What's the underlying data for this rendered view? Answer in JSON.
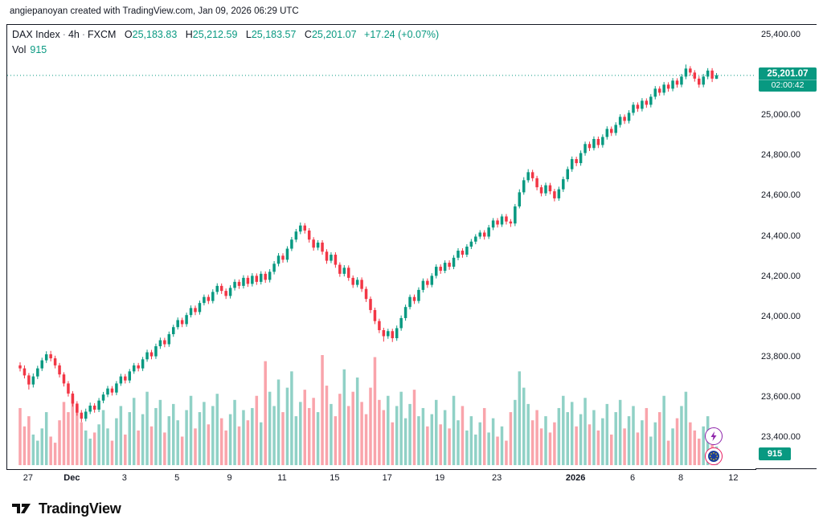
{
  "attribution": "angiepanoyan created with TradingView.com, Jan 09, 2026 06:29 UTC",
  "legend": {
    "symbol": "DAX Index",
    "sep": "·",
    "interval": "4h",
    "exchange": "FXCM",
    "o_label": "O",
    "o": "25,183.83",
    "h_label": "H",
    "h": "25,212.59",
    "l_label": "L",
    "l": "25,183.57",
    "c_label": "C",
    "c": "25,201.07",
    "change": "+17.24 (+0.07%)",
    "vol_label": "Vol",
    "vol_value": "915"
  },
  "price_label": {
    "price": "25,201.07",
    "countdown": "02:00:42"
  },
  "volume_axis_label": "915",
  "footer": {
    "logo_text": "TradingView"
  },
  "colors": {
    "up": "#089981",
    "down": "#f23645",
    "vol_up": "rgba(8,153,129,0.45)",
    "vol_down": "rgba(242,54,69,0.45)",
    "accent": "#089981"
  },
  "chart_data": {
    "type": "candlestick+volume",
    "title": "DAX Index · 4h · FXCM",
    "symbol": "DAX Index",
    "interval": "4h",
    "exchange": "FXCM",
    "last": {
      "open": 25183.83,
      "high": 25212.59,
      "low": 25183.57,
      "close": 25201.07,
      "change": 17.24,
      "change_pct": 0.07,
      "volume": 915
    },
    "ylim": [
      23400,
      25400
    ],
    "grid": false,
    "legend_position": "top-left",
    "y_ticks": [
      25400,
      25000,
      24800,
      24600,
      24400,
      24200,
      24000,
      23800,
      23600,
      23400
    ],
    "x_labels": [
      {
        "text": "27",
        "i": 2
      },
      {
        "text": "Dec",
        "i": 12,
        "major": true
      },
      {
        "text": "3",
        "i": 24
      },
      {
        "text": "5",
        "i": 36
      },
      {
        "text": "9",
        "i": 48
      },
      {
        "text": "11",
        "i": 60
      },
      {
        "text": "15",
        "i": 72
      },
      {
        "text": "17",
        "i": 84
      },
      {
        "text": "19",
        "i": 96
      },
      {
        "text": "23",
        "i": 109
      },
      {
        "text": "2026",
        "i": 127,
        "major": true
      },
      {
        "text": "6",
        "i": 140
      },
      {
        "text": "8",
        "i": 151
      },
      {
        "text": "12",
        "i": 163
      }
    ],
    "candles": [
      [
        23760,
        23775,
        23730,
        23745
      ],
      [
        23745,
        23760,
        23695,
        23710
      ],
      [
        23710,
        23722,
        23640,
        23665
      ],
      [
        23665,
        23720,
        23650,
        23705
      ],
      [
        23705,
        23758,
        23692,
        23745
      ],
      [
        23745,
        23798,
        23732,
        23785
      ],
      [
        23785,
        23830,
        23772,
        23815
      ],
      [
        23815,
        23832,
        23780,
        23795
      ],
      [
        23795,
        23808,
        23745,
        23760
      ],
      [
        23760,
        23772,
        23700,
        23715
      ],
      [
        23715,
        23726,
        23655,
        23670
      ],
      [
        23670,
        23682,
        23605,
        23620
      ],
      [
        23620,
        23632,
        23555,
        23570
      ],
      [
        23570,
        23582,
        23510,
        23525
      ],
      [
        23525,
        23538,
        23478,
        23495
      ],
      [
        23495,
        23545,
        23482,
        23530
      ],
      [
        23530,
        23575,
        23518,
        23560
      ],
      [
        23560,
        23572,
        23525,
        23540
      ],
      [
        23540,
        23598,
        23528,
        23585
      ],
      [
        23585,
        23628,
        23572,
        23615
      ],
      [
        23615,
        23658,
        23602,
        23645
      ],
      [
        23645,
        23657,
        23610,
        23625
      ],
      [
        23625,
        23682,
        23612,
        23670
      ],
      [
        23670,
        23718,
        23658,
        23705
      ],
      [
        23705,
        23717,
        23670,
        23685
      ],
      [
        23685,
        23742,
        23672,
        23730
      ],
      [
        23730,
        23772,
        23718,
        23760
      ],
      [
        23760,
        23772,
        23730,
        23745
      ],
      [
        23745,
        23802,
        23732,
        23790
      ],
      [
        23790,
        23838,
        23778,
        23825
      ],
      [
        23825,
        23837,
        23790,
        23805
      ],
      [
        23805,
        23868,
        23792,
        23855
      ],
      [
        23855,
        23898,
        23842,
        23885
      ],
      [
        23885,
        23897,
        23850,
        23865
      ],
      [
        23865,
        23928,
        23852,
        23915
      ],
      [
        23915,
        23962,
        23902,
        23950
      ],
      [
        23950,
        23998,
        23938,
        23985
      ],
      [
        23985,
        23997,
        23950,
        23965
      ],
      [
        23965,
        24022,
        23952,
        24010
      ],
      [
        24010,
        24058,
        23998,
        24045
      ],
      [
        24045,
        24057,
        24010,
        24025
      ],
      [
        24025,
        24082,
        24012,
        24070
      ],
      [
        24070,
        24112,
        24058,
        24100
      ],
      [
        24100,
        24112,
        24065,
        24080
      ],
      [
        24080,
        24138,
        24068,
        24125
      ],
      [
        24125,
        24168,
        24112,
        24155
      ],
      [
        24155,
        24167,
        24115,
        24130
      ],
      [
        24130,
        24142,
        24090,
        24105
      ],
      [
        24105,
        24158,
        24092,
        24145
      ],
      [
        24145,
        24188,
        24132,
        24175
      ],
      [
        24175,
        24187,
        24140,
        24155
      ],
      [
        24155,
        24208,
        24142,
        24195
      ],
      [
        24195,
        24207,
        24150,
        24165
      ],
      [
        24165,
        24218,
        24152,
        24205
      ],
      [
        24205,
        24217,
        24160,
        24175
      ],
      [
        24175,
        24228,
        24162,
        24215
      ],
      [
        24215,
        24227,
        24170,
        24185
      ],
      [
        24185,
        24238,
        24172,
        24225
      ],
      [
        24225,
        24278,
        24212,
        24265
      ],
      [
        24265,
        24318,
        24252,
        24305
      ],
      [
        24305,
        24317,
        24270,
        24285
      ],
      [
        24285,
        24352,
        24272,
        24340
      ],
      [
        24340,
        24398,
        24328,
        24385
      ],
      [
        24385,
        24438,
        24372,
        24425
      ],
      [
        24425,
        24470,
        24412,
        24455
      ],
      [
        24455,
        24467,
        24415,
        24430
      ],
      [
        24430,
        24442,
        24370,
        24385
      ],
      [
        24385,
        24397,
        24330,
        24345
      ],
      [
        24345,
        24382,
        24332,
        24370
      ],
      [
        24370,
        24382,
        24310,
        24325
      ],
      [
        24325,
        24337,
        24265,
        24280
      ],
      [
        24280,
        24322,
        24268,
        24310
      ],
      [
        24310,
        24322,
        24245,
        24260
      ],
      [
        24260,
        24272,
        24200,
        24215
      ],
      [
        24215,
        24258,
        24202,
        24245
      ],
      [
        24245,
        24257,
        24180,
        24195
      ],
      [
        24195,
        24207,
        24145,
        24160
      ],
      [
        24160,
        24198,
        24148,
        24185
      ],
      [
        24185,
        24197,
        24125,
        24140
      ],
      [
        24140,
        24152,
        24075,
        24090
      ],
      [
        24090,
        24102,
        24020,
        24035
      ],
      [
        24035,
        24047,
        23965,
        23980
      ],
      [
        23980,
        23992,
        23920,
        23935
      ],
      [
        23935,
        23947,
        23878,
        23905
      ],
      [
        23905,
        23942,
        23892,
        23930
      ],
      [
        23930,
        23942,
        23876,
        23895
      ],
      [
        23895,
        23958,
        23882,
        23945
      ],
      [
        23945,
        24008,
        23932,
        23995
      ],
      [
        23995,
        24062,
        23982,
        24050
      ],
      [
        24050,
        24112,
        24038,
        24100
      ],
      [
        24100,
        24112,
        24065,
        24080
      ],
      [
        24080,
        24148,
        24068,
        24135
      ],
      [
        24135,
        24192,
        24122,
        24180
      ],
      [
        24180,
        24192,
        24145,
        24160
      ],
      [
        24160,
        24218,
        24148,
        24205
      ],
      [
        24205,
        24262,
        24192,
        24250
      ],
      [
        24250,
        24262,
        24215,
        24230
      ],
      [
        24230,
        24282,
        24218,
        24270
      ],
      [
        24270,
        24282,
        24235,
        24250
      ],
      [
        24250,
        24308,
        24238,
        24295
      ],
      [
        24295,
        24342,
        24282,
        24330
      ],
      [
        24330,
        24342,
        24295,
        24310
      ],
      [
        24310,
        24362,
        24298,
        24350
      ],
      [
        24350,
        24388,
        24338,
        24375
      ],
      [
        24375,
        24412,
        24362,
        24400
      ],
      [
        24400,
        24432,
        24388,
        24420
      ],
      [
        24420,
        24432,
        24385,
        24400
      ],
      [
        24400,
        24458,
        24388,
        24445
      ],
      [
        24445,
        24492,
        24432,
        24480
      ],
      [
        24480,
        24492,
        24445,
        24460
      ],
      [
        24460,
        24512,
        24448,
        24500
      ],
      [
        24500,
        24512,
        24460,
        24475
      ],
      [
        24475,
        24487,
        24448,
        24465
      ],
      [
        24465,
        24562,
        24452,
        24550
      ],
      [
        24550,
        24635,
        24540,
        24620
      ],
      [
        24620,
        24695,
        24608,
        24680
      ],
      [
        24680,
        24735,
        24668,
        24720
      ],
      [
        24720,
        24732,
        24675,
        24690
      ],
      [
        24690,
        24702,
        24630,
        24645
      ],
      [
        24645,
        24657,
        24600,
        24615
      ],
      [
        24615,
        24668,
        24602,
        24655
      ],
      [
        24655,
        24667,
        24610,
        24625
      ],
      [
        24625,
        24637,
        24575,
        24590
      ],
      [
        24590,
        24648,
        24578,
        24635
      ],
      [
        24635,
        24698,
        24622,
        24685
      ],
      [
        24685,
        24748,
        24672,
        24735
      ],
      [
        24735,
        24798,
        24722,
        24785
      ],
      [
        24785,
        24797,
        24750,
        24765
      ],
      [
        24765,
        24828,
        24752,
        24815
      ],
      [
        24815,
        24872,
        24802,
        24860
      ],
      [
        24860,
        24872,
        24825,
        24840
      ],
      [
        24840,
        24898,
        24828,
        24885
      ],
      [
        24885,
        24897,
        24840,
        24855
      ],
      [
        24855,
        24908,
        24842,
        24895
      ],
      [
        24895,
        24948,
        24882,
        24935
      ],
      [
        24935,
        24947,
        24900,
        24915
      ],
      [
        24915,
        24968,
        24902,
        24955
      ],
      [
        24955,
        25008,
        24942,
        24995
      ],
      [
        24995,
        25007,
        24960,
        24975
      ],
      [
        24975,
        25028,
        24962,
        25015
      ],
      [
        25015,
        25068,
        25002,
        25055
      ],
      [
        25055,
        25067,
        25020,
        25035
      ],
      [
        25035,
        25088,
        25022,
        25075
      ],
      [
        25075,
        25087,
        25040,
        25055
      ],
      [
        25055,
        25108,
        25042,
        25095
      ],
      [
        25095,
        25148,
        25082,
        25135
      ],
      [
        25135,
        25147,
        25100,
        25115
      ],
      [
        25115,
        25168,
        25102,
        25155
      ],
      [
        25155,
        25167,
        25120,
        25135
      ],
      [
        25135,
        25188,
        25122,
        25175
      ],
      [
        25175,
        25187,
        25140,
        25155
      ],
      [
        25155,
        25208,
        25142,
        25195
      ],
      [
        25195,
        25255,
        25182,
        25235
      ],
      [
        25235,
        25247,
        25200,
        25215
      ],
      [
        25215,
        25227,
        25170,
        25185
      ],
      [
        25185,
        25197,
        25140,
        25155
      ],
      [
        25155,
        25208,
        25142,
        25195
      ],
      [
        25195,
        25237,
        25182,
        25225
      ],
      [
        25225,
        25237,
        25168,
        25185
      ],
      [
        25183.83,
        25212.59,
        25183.57,
        25201.07
      ]
    ],
    "volumes": [
      2800,
      1900,
      2400,
      1500,
      1200,
      1800,
      2600,
      1400,
      1100,
      2200,
      3100,
      2600,
      3400,
      2900,
      2100,
      1700,
      1300,
      1600,
      2000,
      2700,
      1800,
      1200,
      2300,
      2900,
      1500,
      2600,
      3300,
      1700,
      2500,
      3600,
      1900,
      2800,
      3200,
      1600,
      2400,
      3000,
      2200,
      1400,
      2700,
      3400,
      1800,
      2600,
      3100,
      2000,
      2900,
      3500,
      2300,
      1700,
      2500,
      3200,
      1900,
      2700,
      2200,
      2800,
      3400,
      2100,
      5100,
      3600,
      2900,
      4200,
      2600,
      3800,
      4600,
      2400,
      3100,
      3700,
      2800,
      3300,
      2600,
      5400,
      3900,
      3000,
      2400,
      3500,
      4700,
      2900,
      3600,
      4300,
      3100,
      2500,
      3800,
      5300,
      3200,
      2700,
      3400,
      2100,
      2900,
      3600,
      2300,
      3000,
      3700,
      2400,
      2800,
      1900,
      2500,
      3200,
      2000,
      2700,
      1800,
      3400,
      2200,
      2900,
      1700,
      2400,
      1500,
      2100,
      2800,
      1600,
      2300,
      1400,
      1900,
      1200,
      2600,
      3200,
      4600,
      3800,
      3000,
      2200,
      2700,
      1800,
      2400,
      1600,
      2100,
      2800,
      3400,
      2600,
      3100,
      1900,
      2500,
      3300,
      2000,
      2700,
      1700,
      2300,
      3000,
      1500,
      2600,
      3200,
      1800,
      2400,
      2900,
      1600,
      2200,
      2800,
      1400,
      2100,
      2600,
      3400,
      1200,
      1800,
      2300,
      2900,
      3600,
      2100,
      1700,
      1300,
      1900,
      2400,
      1100,
      915
    ]
  }
}
